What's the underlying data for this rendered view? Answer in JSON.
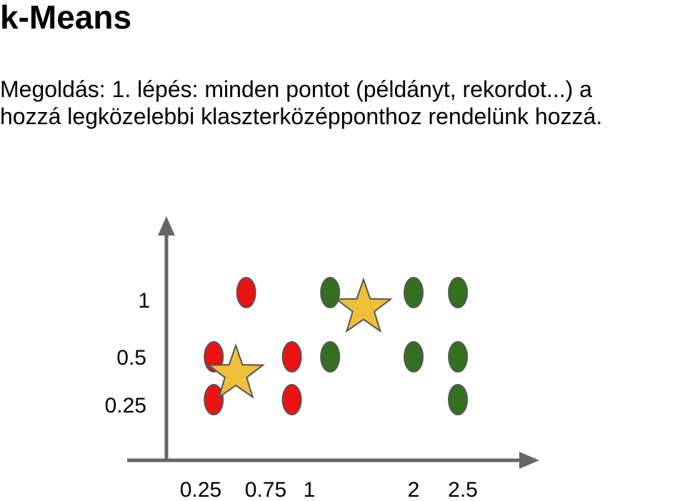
{
  "slide": {
    "title": "k-Means",
    "text_lines": [
      "Megoldás: 1. lépés: minden pontot (példányt, rekordot...) a",
      "hozzá legközelebbi klaszterközépponthoz rendelünk hozzá."
    ]
  },
  "chart_data": {
    "type": "scatter",
    "x_ticks": [
      "0.25",
      "0.75",
      "1",
      "2",
      "2.5"
    ],
    "y_ticks": [
      "1",
      "0.5",
      "0.25"
    ],
    "series": [
      {
        "color": "#ee1111",
        "marker": "ellipse",
        "points": [
          [
            0.6,
            1
          ],
          [
            0.35,
            0.5
          ],
          [
            0.9,
            0.5
          ],
          [
            0.35,
            0.25
          ],
          [
            0.9,
            0.25
          ]
        ]
      },
      {
        "color": "#33701f",
        "marker": "ellipse",
        "points": [
          [
            1.2,
            1
          ],
          [
            1.2,
            0.5
          ],
          [
            2.0,
            1
          ],
          [
            2.45,
            1
          ],
          [
            2.0,
            0.5
          ],
          [
            2.45,
            0.5
          ],
          [
            2.45,
            0.25
          ]
        ]
      },
      {
        "color": "#f0bf3a",
        "marker": "star",
        "points": [
          [
            0.52,
            0.4
          ],
          [
            1.52,
            0.88
          ]
        ]
      }
    ],
    "axis_color": "#666666",
    "marker_stroke": "#555555"
  }
}
